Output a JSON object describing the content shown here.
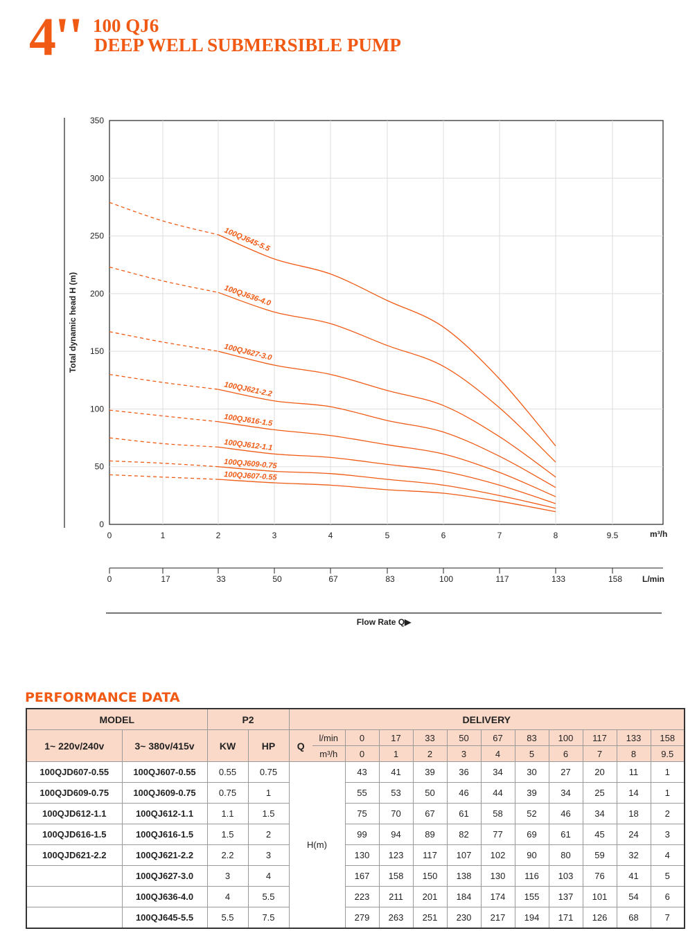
{
  "header": {
    "size": "4''",
    "model": "100 QJ6",
    "title": "DEEP WELL SUBMERSIBLE PUMP"
  },
  "colors": {
    "accent": "#f05a14",
    "header_bg": "#fbd9c8",
    "curve": "#f05a14"
  },
  "chart_data": {
    "type": "line",
    "ylabel": "Total dynamic head H (m)",
    "xlabel": "Flow Rate Q▶",
    "x_unit": "m³/h",
    "x2_unit": "L/min",
    "x_ticks": [
      "0",
      "1",
      "2",
      "3",
      "4",
      "5",
      "6",
      "7",
      "8",
      "9.5"
    ],
    "x2_ticks": [
      "0",
      "17",
      "33",
      "50",
      "67",
      "83",
      "100",
      "117",
      "133",
      "158"
    ],
    "y_ticks": [
      "0",
      "50",
      "100",
      "150",
      "200",
      "250",
      "300",
      "350"
    ],
    "ylim": [
      0,
      350
    ],
    "grid": true,
    "x": [
      0,
      1,
      2,
      3,
      4,
      5,
      6,
      7,
      8
    ],
    "dashed_until": 2,
    "series": [
      {
        "name": "100QJ645-5.5",
        "values": [
          279,
          263,
          251,
          230,
          217,
          194,
          171,
          126,
          68
        ]
      },
      {
        "name": "100QJ636-4.0",
        "values": [
          223,
          211,
          201,
          184,
          174,
          155,
          137,
          101,
          54
        ]
      },
      {
        "name": "100QJ627-3.0",
        "values": [
          167,
          158,
          150,
          138,
          130,
          116,
          103,
          76,
          41
        ]
      },
      {
        "name": "100QJ621-2.2",
        "values": [
          130,
          123,
          117,
          107,
          102,
          90,
          80,
          59,
          32
        ]
      },
      {
        "name": "100QJ616-1.5",
        "values": [
          99,
          94,
          89,
          82,
          77,
          69,
          61,
          45,
          24
        ]
      },
      {
        "name": "100QJ612-1.1",
        "values": [
          75,
          70,
          67,
          61,
          58,
          52,
          46,
          34,
          18
        ]
      },
      {
        "name": "100QJ609-0.75",
        "values": [
          55,
          53,
          50,
          46,
          44,
          39,
          34,
          25,
          14
        ]
      },
      {
        "name": "100QJ607-0.55",
        "values": [
          43,
          41,
          39,
          36,
          34,
          30,
          27,
          20,
          11
        ]
      }
    ]
  },
  "table": {
    "title": "PERFORMANCE DATA",
    "model": "MODEL",
    "p2": "P2",
    "delivery": "DELIVERY",
    "single": "1~  220v/240v",
    "three": "3~ 380v/415v",
    "kw": "KW",
    "hp": "HP",
    "q": "Q",
    "lmin": "l/min",
    "m3h": "m³/h",
    "hm": "H(m)",
    "lmin_vals": [
      "0",
      "17",
      "33",
      "50",
      "67",
      "83",
      "100",
      "117",
      "133",
      "158"
    ],
    "m3h_vals": [
      "0",
      "1",
      "2",
      "3",
      "4",
      "5",
      "6",
      "7",
      "8",
      "9.5"
    ],
    "rows": [
      {
        "single": "100QJD607-0.55",
        "three": "100QJ607-0.55",
        "kw": "0.55",
        "hp": "0.75",
        "h": [
          "43",
          "41",
          "39",
          "36",
          "34",
          "30",
          "27",
          "20",
          "11",
          "1"
        ]
      },
      {
        "single": "100QJD609-0.75",
        "three": "100QJ609-0.75",
        "kw": "0.75",
        "hp": "1",
        "h": [
          "55",
          "53",
          "50",
          "46",
          "44",
          "39",
          "34",
          "25",
          "14",
          "1"
        ]
      },
      {
        "single": "100QJD612-1.1",
        "three": "100QJ612-1.1",
        "kw": "1.1",
        "hp": "1.5",
        "h": [
          "75",
          "70",
          "67",
          "61",
          "58",
          "52",
          "46",
          "34",
          "18",
          "2"
        ]
      },
      {
        "single": "100QJD616-1.5",
        "three": "100QJ616-1.5",
        "kw": "1.5",
        "hp": "2",
        "h": [
          "99",
          "94",
          "89",
          "82",
          "77",
          "69",
          "61",
          "45",
          "24",
          "3"
        ]
      },
      {
        "single": "100QJD621-2.2",
        "three": "100QJ621-2.2",
        "kw": "2.2",
        "hp": "3",
        "h": [
          "130",
          "123",
          "117",
          "107",
          "102",
          "90",
          "80",
          "59",
          "32",
          "4"
        ]
      },
      {
        "single": "",
        "three": "100QJ627-3.0",
        "kw": "3",
        "hp": "4",
        "h": [
          "167",
          "158",
          "150",
          "138",
          "130",
          "116",
          "103",
          "76",
          "41",
          "5"
        ]
      },
      {
        "single": "",
        "three": "100QJ636-4.0",
        "kw": "4",
        "hp": "5.5",
        "h": [
          "223",
          "211",
          "201",
          "184",
          "174",
          "155",
          "137",
          "101",
          "54",
          "6"
        ]
      },
      {
        "single": "",
        "three": "100QJ645-5.5",
        "kw": "5.5",
        "hp": "7.5",
        "h": [
          "279",
          "263",
          "251",
          "230",
          "217",
          "194",
          "171",
          "126",
          "68",
          "7"
        ]
      }
    ]
  }
}
